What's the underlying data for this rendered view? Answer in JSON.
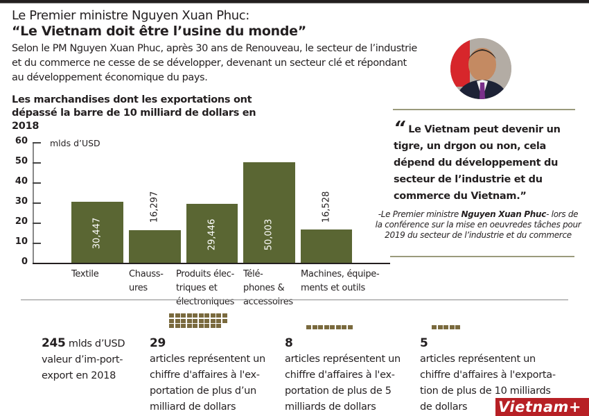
{
  "header": {
    "title_line1": "Le Premier ministre Nguyen Xuan Phuc:",
    "title_line2": "“Le Vietnam doit être l’usine du monde”",
    "intro": "Selon le PM Nguyen Xuan Phuc, après 30 ans de Renouveau, le secteur de l’industrie et du commerce ne cesse de se développer,  devenant un secteur clé et répondant au développement économique du pays."
  },
  "chart_data": {
    "type": "bar",
    "title": "Les marchandises dont les exportations ont dépassé la barre de 10 milliard de dollars en 2018",
    "xlabel": "",
    "ylabel": "mlds d’USD",
    "ylim": [
      0,
      60
    ],
    "yticks": [
      0,
      10,
      20,
      30,
      40,
      50,
      60
    ],
    "categories": [
      "Textile",
      "Chaussures",
      "Produits électriques et électroniques",
      "Téléphones & accessoires",
      "Machines, équipements et outils"
    ],
    "values": [
      30.447,
      16.297,
      29.446,
      50.003,
      16.528
    ],
    "value_labels": [
      "30,447",
      "16,297",
      "29,446",
      "50,003",
      "16,528"
    ],
    "bar_color": "#5a6633",
    "grid": false,
    "legend": null
  },
  "chart_labels": {
    "unit": "mlds d’USD",
    "ticks": [
      "60",
      "50",
      "40",
      "30",
      "20",
      "10",
      "0"
    ],
    "cats": [
      [
        "Textile"
      ],
      [
        "Chauss-",
        "ures"
      ],
      [
        "Produits élec-",
        "triques et",
        "électroniques"
      ],
      [
        "Télé-",
        "phones &",
        "accessoires"
      ],
      [
        "Machines, équipe-",
        "ments et outils"
      ]
    ]
  },
  "quote": {
    "mark": "“",
    "text": "Le  Vietnam peut devenir un tigre, un drgon ou non, cela dépend du développement du secteur de l’industrie et du commerce du Vietnam.”",
    "attrib_prefix": "-Le Premier ministre ",
    "attrib_name": "Nguyen Xuan Phuc",
    "attrib_suffix": "- lors de la conférence sur la mise en oeuvredes tâches pour 2019 du secteur de l’industrie et du commerce"
  },
  "stats": [
    {
      "number": "245",
      "unit": " mlds d’USD",
      "text": "valeur d’im-port-export en 2018"
    },
    {
      "number": "29",
      "unit": "",
      "text": "articles représentent un chiffre d'affaires à l'ex-portation de plus d’un milliard de dollars",
      "squares": 29
    },
    {
      "number": "8",
      "unit": "",
      "text": "articles représentent un chiffre d'affaires à l'ex-portation de plus de 5 milliards de dollars",
      "squares": 8
    },
    {
      "number": "5",
      "unit": "",
      "text": "articles représentent un chiffre d'affaires à l'exporta-tion de plus de 10 milliards de dollars",
      "squares": 5
    }
  ],
  "colors": {
    "bar": "#5a6633",
    "square": "#7a6a3e",
    "rule": "#9a9a7c",
    "logo": "#b72025"
  },
  "logo": {
    "text": "Vietnam+"
  }
}
